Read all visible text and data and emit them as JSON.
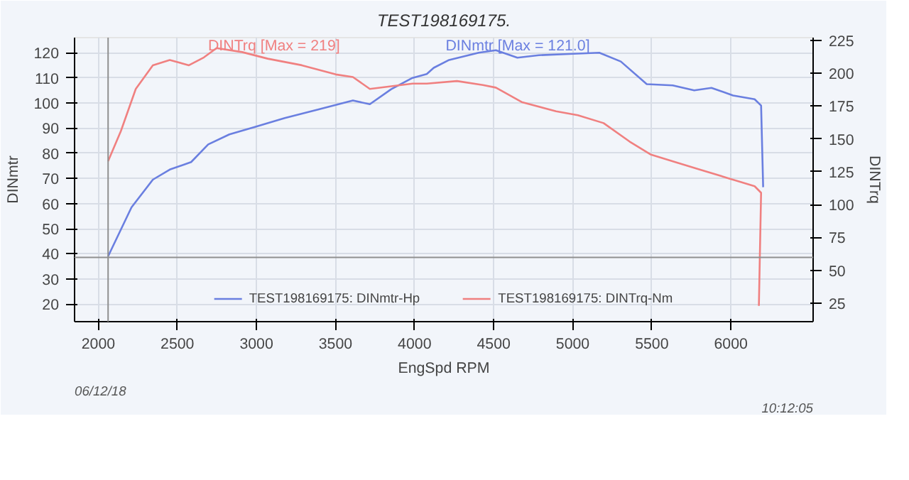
{
  "chart_data": {
    "type": "line",
    "title": "TEST198169175.",
    "xlabel": "EngSpd RPM",
    "ylabel": "DINmtr",
    "y2label": "DINTrq",
    "xlim": [
      1850,
      6520
    ],
    "xticks": [
      2000,
      2500,
      3000,
      3500,
      4000,
      4500,
      5000,
      5500,
      6000
    ],
    "ylim": [
      13,
      126
    ],
    "yticks": [
      20,
      30,
      40,
      50,
      60,
      70,
      80,
      90,
      100,
      110,
      120
    ],
    "y2lim": [
      11,
      227
    ],
    "y2ticks": [
      25,
      50,
      75,
      100,
      125,
      150,
      175,
      200,
      225
    ],
    "grid": true,
    "legend": "bottom",
    "series": [
      {
        "name": "TEST198169175: DINmtr-Hp",
        "color": "#6a7fe0",
        "x": [
          2062,
          2210,
          2345,
          2452,
          2587,
          2695,
          2829,
          2991,
          3179,
          3394,
          3610,
          3717,
          3852,
          3987,
          4077,
          4121,
          4214,
          4405,
          4514,
          4650,
          4786,
          4977,
          5168,
          5304,
          5468,
          5632,
          5768,
          5877,
          6014,
          6150,
          6191,
          6204
        ],
        "values": [
          39,
          58.5,
          69.5,
          73.5,
          76.5,
          83.5,
          87.5,
          90.5,
          94,
          97.5,
          101,
          99.5,
          105.5,
          110,
          111.5,
          114,
          117,
          120,
          121.0,
          118,
          119,
          119.5,
          120,
          116.5,
          107.5,
          107,
          105,
          106,
          103,
          101.5,
          99,
          66.5
        ]
      },
      {
        "name": "TEST198169175: DINTrq-Nm",
        "color": "#f08080",
        "axis": "y2",
        "x": [
          2062,
          2143,
          2237,
          2345,
          2452,
          2573,
          2668,
          2748,
          2910,
          3071,
          3287,
          3502,
          3610,
          3717,
          3852,
          3987,
          4077,
          4268,
          4432,
          4514,
          4677,
          4895,
          5032,
          5195,
          5359,
          5495,
          5659,
          5795,
          5986,
          6150,
          6191,
          6177
        ],
        "values": [
          133,
          156,
          188,
          206,
          210,
          206,
          212,
          219,
          216,
          211,
          206,
          199,
          197,
          188,
          190,
          192,
          192,
          194,
          191,
          189,
          178,
          171,
          168,
          162,
          148,
          138,
          132,
          127,
          120,
          114,
          109,
          23
        ]
      }
    ],
    "ref_lines": [
      {
        "axis": "y",
        "value": 38.6,
        "color": "#909090"
      },
      {
        "axis": "x",
        "value": 2062,
        "color": "#909090"
      }
    ],
    "annotations": [
      "DINmtr [Max = 121.0]",
      "DINTrq [Max = 219]",
      "06/12/18",
      "10:12:05"
    ]
  }
}
